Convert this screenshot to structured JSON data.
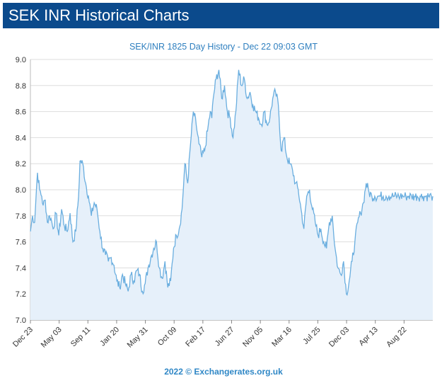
{
  "header": {
    "title": "SEK INR Historical Charts"
  },
  "footer": {
    "credit": "2022 © Exchangerates.org.uk"
  },
  "colors": {
    "header_bg": "#0b4a8c",
    "line": "#6aaedf",
    "area": "#e6f0fa",
    "grid": "#dddddd",
    "accent_text": "#2e7fbf"
  },
  "chart_data": {
    "type": "area",
    "title": "SEK/INR 1825 Day History - Dec 22 09:03 GMT",
    "xlabel": "",
    "ylabel": "",
    "ylim": [
      7.0,
      9.0
    ],
    "yticks": [
      "7.0",
      "7.2",
      "7.4",
      "7.6",
      "7.8",
      "8.0",
      "8.2",
      "8.4",
      "8.6",
      "8.8",
      "9.0"
    ],
    "xticks": [
      "Dec 23",
      "May 03",
      "Sep 11",
      "Jan 20",
      "May 31",
      "Oct 09",
      "Feb 17",
      "Jun 27",
      "Nov 05",
      "Mar 16",
      "Jul 25",
      "Dec 03",
      "Apr 13",
      "Aug 22"
    ],
    "grid": true,
    "legend": "none",
    "series": [
      {
        "x_index": [
          0,
          3,
          6,
          9,
          10,
          13,
          16,
          18,
          21,
          24,
          27,
          29,
          32,
          36,
          40,
          44,
          48,
          52,
          56,
          60,
          64,
          68,
          70,
          74,
          78,
          82,
          86,
          90,
          94,
          98,
          102,
          106,
          110,
          114,
          118,
          122,
          126,
          130,
          134,
          138,
          142,
          146,
          150,
          154,
          158,
          162,
          166,
          170,
          174,
          178,
          182,
          186,
          190,
          194,
          198,
          202,
          206,
          210,
          214,
          218,
          222,
          226,
          230,
          234,
          238,
          242,
          246,
          250,
          254,
          256,
          258,
          262,
          266,
          270,
          274,
          278,
          282,
          286,
          290,
          294,
          298,
          302,
          306,
          310,
          314,
          318,
          322,
          326,
          330,
          334,
          338,
          342,
          346,
          350,
          354,
          358,
          362,
          366,
          370,
          374,
          378,
          382,
          386,
          390,
          394,
          398,
          402,
          406,
          410,
          414,
          418,
          422,
          426,
          430,
          434,
          438,
          442,
          446,
          450,
          454,
          458,
          462,
          466,
          470,
          474,
          478,
          482,
          486,
          490,
          494,
          498,
          502,
          506,
          510,
          514,
          518,
          522,
          526,
          530,
          534,
          538,
          542,
          546,
          550,
          554,
          558,
          562,
          566,
          568
        ],
        "values": [
          7.68,
          7.8,
          7.75,
          8.05,
          8.13,
          8.0,
          7.95,
          7.88,
          7.92,
          7.75,
          7.8,
          7.78,
          7.7,
          7.82,
          7.65,
          7.85,
          7.72,
          7.68,
          7.82,
          7.6,
          7.68,
          7.95,
          8.22,
          8.2,
          8.05,
          7.95,
          7.8,
          7.9,
          7.85,
          7.68,
          7.55,
          7.5,
          7.45,
          7.48,
          7.42,
          7.3,
          7.25,
          7.35,
          7.28,
          7.22,
          7.35,
          7.3,
          7.38,
          7.35,
          7.22,
          7.28,
          7.4,
          7.48,
          7.55,
          7.6,
          7.4,
          7.32,
          7.45,
          7.25,
          7.3,
          7.55,
          7.65,
          7.7,
          7.85,
          8.2,
          8.05,
          8.35,
          8.6,
          8.5,
          8.35,
          8.25,
          8.3,
          8.45,
          8.6,
          8.55,
          8.7,
          8.85,
          8.92,
          8.7,
          8.8,
          8.6,
          8.55,
          8.4,
          8.6,
          8.92,
          8.8,
          8.85,
          8.7,
          8.75,
          8.65,
          8.6,
          8.55,
          8.5,
          8.6,
          8.5,
          8.55,
          8.7,
          8.75,
          8.65,
          8.3,
          8.4,
          8.25,
          8.2,
          8.15,
          8.05,
          8.0,
          7.85,
          7.7,
          7.95,
          8.0,
          7.85,
          7.75,
          7.65,
          7.7,
          7.6,
          7.55,
          7.75,
          7.8,
          7.55,
          7.4,
          7.35,
          7.45,
          7.2,
          7.3,
          7.45,
          7.6,
          7.75,
          7.82,
          7.9,
          8.05,
          7.98,
          7.95,
          7.95,
          7.95,
          7.95,
          7.95,
          7.95,
          7.95,
          7.95,
          7.95,
          7.95,
          7.95,
          7.95,
          7.95,
          7.95,
          7.95,
          7.95,
          7.95,
          7.95,
          7.95,
          7.95,
          7.95,
          7.95,
          7.95
        ]
      }
    ]
  }
}
